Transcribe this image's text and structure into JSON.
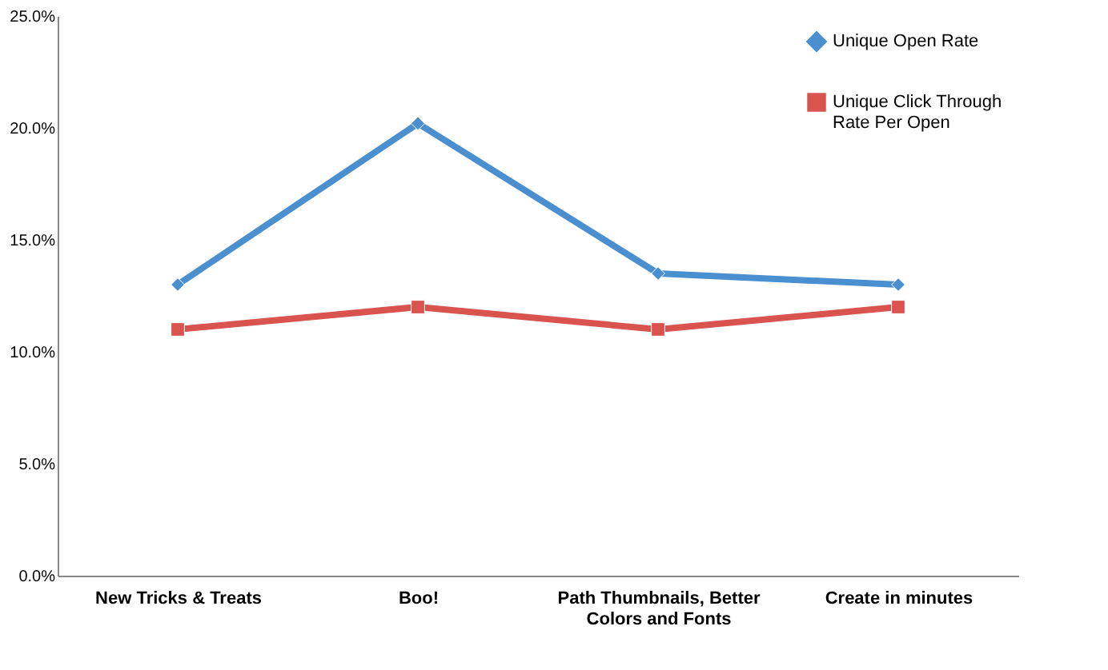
{
  "chart_data": {
    "type": "line",
    "categories": [
      "New Tricks & Treats",
      "Boo!",
      "Path Thumbnails, Better Colors and Fonts",
      "Create in minutes"
    ],
    "series": [
      {
        "name": "Unique Open Rate",
        "color": "#4a8fd0",
        "marker": "diamond",
        "values": [
          13.0,
          20.2,
          13.5,
          13.0
        ]
      },
      {
        "name": "Unique Click Through Rate Per Open",
        "color": "#d9534f",
        "marker": "square",
        "values": [
          11.0,
          12.0,
          11.0,
          12.0
        ]
      }
    ],
    "ylim": [
      0,
      25
    ],
    "yticks": [
      {
        "value": 0,
        "label": "0.0%"
      },
      {
        "value": 5,
        "label": "5.0%"
      },
      {
        "value": 10,
        "label": "10.0%"
      },
      {
        "value": 15,
        "label": "15.0%"
      },
      {
        "value": 20,
        "label": "20.0%"
      },
      {
        "value": 25,
        "label": "25.0%"
      }
    ],
    "grid": false,
    "legend": "top right",
    "line_style": "solid"
  }
}
